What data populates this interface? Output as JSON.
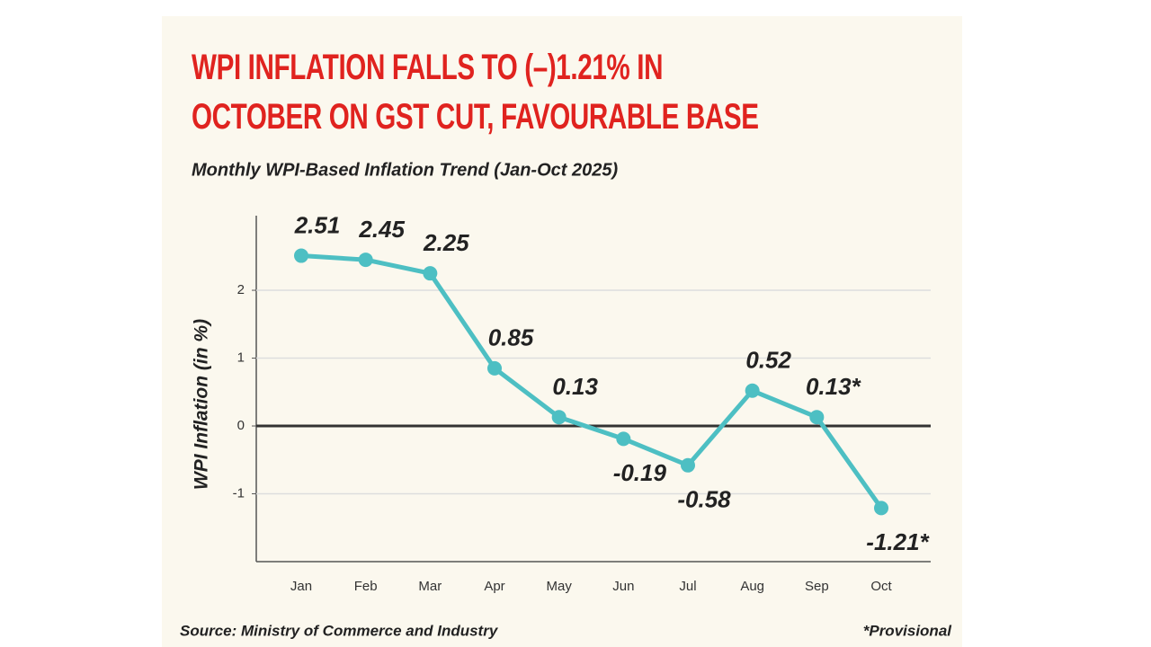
{
  "chart_data": {
    "type": "line",
    "title": "WPI INFLATION FALLS TO (–)1.21% IN OCTOBER ON GST CUT, FAVOURABLE BASE",
    "subtitle": "Monthly WPI-Based Inflation Trend (Jan-Oct 2025)",
    "y_label": "WPI Inflation (in %)",
    "categories": [
      "Jan",
      "Feb",
      "Mar",
      "Apr",
      "May",
      "Jun",
      "Jul",
      "Aug",
      "Sep",
      "Oct"
    ],
    "values": [
      2.51,
      2.45,
      2.25,
      0.85,
      0.13,
      -0.19,
      -0.58,
      0.52,
      0.13,
      -1.21
    ],
    "value_labels": [
      "2.51",
      "2.45",
      "2.25",
      "0.85",
      "0.13",
      "-0.19",
      "-0.58",
      "0.52",
      "0.13*",
      "-1.21*"
    ],
    "color": "#4dbfc3",
    "ylim": [
      -2,
      3.1
    ],
    "yticks": [
      -1,
      0,
      1,
      2
    ],
    "grid": true,
    "source": "Source: Ministry of Commerce and Industry",
    "footnote": "*Provisional"
  }
}
